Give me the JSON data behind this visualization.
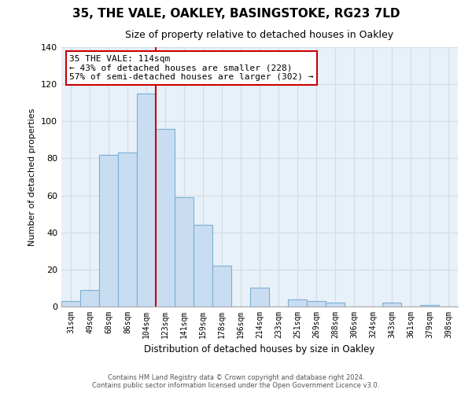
{
  "title": "35, THE VALE, OAKLEY, BASINGSTOKE, RG23 7LD",
  "subtitle": "Size of property relative to detached houses in Oakley",
  "xlabel": "Distribution of detached houses by size in Oakley",
  "ylabel": "Number of detached properties",
  "bar_labels": [
    "31sqm",
    "49sqm",
    "68sqm",
    "86sqm",
    "104sqm",
    "123sqm",
    "141sqm",
    "159sqm",
    "178sqm",
    "196sqm",
    "214sqm",
    "233sqm",
    "251sqm",
    "269sqm",
    "288sqm",
    "306sqm",
    "324sqm",
    "343sqm",
    "361sqm",
    "379sqm",
    "398sqm"
  ],
  "bar_heights": [
    3,
    9,
    82,
    83,
    115,
    96,
    59,
    44,
    22,
    0,
    10,
    0,
    4,
    3,
    2,
    0,
    0,
    2,
    0,
    1,
    0
  ],
  "bar_color": "#c9ddf2",
  "bar_edge_color": "#7aafd4",
  "vline_x": 4.5,
  "vline_color": "#cc0000",
  "annotation_title": "35 THE VALE: 114sqm",
  "annotation_line1": "← 43% of detached houses are smaller (228)",
  "annotation_line2": "57% of semi-detached houses are larger (302) →",
  "annotation_box_color": "#ffffff",
  "annotation_box_edge": "#cc0000",
  "ylim": [
    0,
    140
  ],
  "yticks": [
    0,
    20,
    40,
    60,
    80,
    100,
    120,
    140
  ],
  "footer_line1": "Contains HM Land Registry data © Crown copyright and database right 2024.",
  "footer_line2": "Contains public sector information licensed under the Open Government Licence v3.0.",
  "bg_color": "#ffffff",
  "grid_color": "#d0dde8"
}
